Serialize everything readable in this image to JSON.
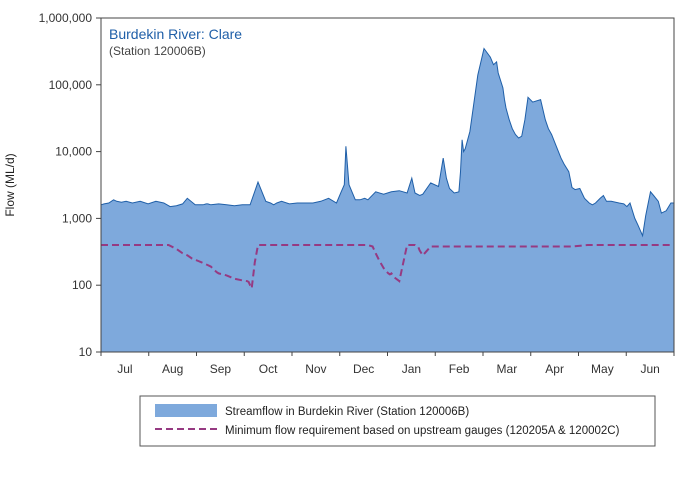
{
  "chart_data": {
    "type": "area",
    "title": "Burdekin River: Clare",
    "subtitle": "(Station 120006B)",
    "xlabel": "",
    "ylabel": "Flow (ML/d)",
    "yscale": "log",
    "ylim": [
      10,
      1000000
    ],
    "y_ticks": [
      10,
      100,
      1000,
      10000,
      100000,
      1000000
    ],
    "y_tick_labels": [
      "10",
      "100",
      "1,000",
      "10,000",
      "100,000",
      "1,000,000"
    ],
    "x_tick_labels": [
      "Jul",
      "Aug",
      "Sep",
      "Oct",
      "Nov",
      "Dec",
      "Jan",
      "Feb",
      "Mar",
      "Apr",
      "May",
      "Jun"
    ],
    "x_range_days": [
      0,
      365
    ],
    "grid": false,
    "legend_position": "bottom",
    "series": [
      {
        "name": "Streamflow in Burdekin River (Station 120006B)",
        "style": "area",
        "color": "#7ea9dc",
        "edge_color": "#1f5fa8",
        "x": [
          0,
          2,
          5,
          8,
          10,
          13,
          16,
          20,
          25,
          30,
          35,
          40,
          44,
          48,
          52,
          55,
          60,
          65,
          67,
          68,
          70,
          75,
          80,
          85,
          90,
          95,
          100,
          105,
          108,
          110,
          112,
          115,
          120,
          125,
          130,
          135,
          140,
          145,
          150,
          153,
          155,
          156,
          158,
          162,
          165,
          168,
          170,
          175,
          180,
          185,
          190,
          195,
          198,
          200,
          203,
          205,
          210,
          215,
          218,
          220,
          222,
          225,
          228,
          229,
          230,
          231,
          232,
          235,
          240,
          244,
          248,
          250,
          252,
          253,
          256,
          257,
          258,
          260,
          262,
          264,
          266,
          268,
          270,
          272,
          275,
          280,
          283,
          285,
          287,
          290,
          293,
          295,
          298,
          300,
          302,
          305,
          308,
          311,
          313,
          315,
          318,
          320,
          322,
          325,
          330,
          333,
          335,
          337,
          340,
          342,
          345,
          347,
          350,
          352,
          355,
          357,
          360,
          363,
          365
        ],
        "y": [
          1600,
          1650,
          1700,
          1900,
          1800,
          1750,
          1800,
          1700,
          1800,
          1650,
          1800,
          1700,
          1500,
          1550,
          1650,
          2000,
          1600,
          1600,
          1650,
          1650,
          1600,
          1650,
          1600,
          1550,
          1600,
          1600,
          3500,
          1800,
          1700,
          1600,
          1700,
          1800,
          1650,
          1700,
          1700,
          1700,
          1800,
          2000,
          1700,
          2500,
          3200,
          12000,
          3200,
          1900,
          1900,
          2000,
          1900,
          2500,
          2300,
          2500,
          2600,
          2400,
          4000,
          2400,
          2200,
          2300,
          3400,
          3000,
          8000,
          4000,
          2800,
          2400,
          2500,
          5000,
          15000,
          10000,
          11000,
          20000,
          140000,
          350000,
          260000,
          200000,
          220000,
          150000,
          90000,
          60000,
          45000,
          30000,
          22000,
          18000,
          16000,
          17000,
          30000,
          65000,
          55000,
          60000,
          30000,
          22000,
          18000,
          12000,
          8000,
          6500,
          5000,
          2900,
          2700,
          2800,
          2000,
          1700,
          1600,
          1700,
          2000,
          2200,
          1800,
          1800,
          1700,
          1650,
          1500,
          1700,
          1000,
          800,
          550,
          1100,
          2500,
          2200,
          1800,
          1200,
          1300,
          1700,
          1700
        ]
      },
      {
        "name": "Minimum flow requirement based on upstream gauges (120205A & 120002C)",
        "style": "dashed-line",
        "color": "#963a82",
        "x": [
          0,
          10,
          20,
          30,
          35,
          40,
          43,
          48,
          52,
          55,
          58,
          60,
          62,
          64,
          66,
          68,
          70,
          72,
          74,
          75,
          80,
          85,
          90,
          93,
          94,
          95,
          96,
          98,
          100,
          110,
          120,
          130,
          140,
          150,
          160,
          165,
          170,
          173,
          175,
          177,
          180,
          182,
          183,
          184,
          185,
          187,
          190,
          195,
          198,
          200,
          202,
          203,
          205,
          210,
          220,
          230,
          240,
          250,
          260,
          270,
          280,
          290,
          295,
          300,
          310,
          320,
          330,
          340,
          350,
          360,
          365
        ],
        "y": [
          400,
          400,
          400,
          400,
          400,
          400,
          400,
          350,
          300,
          280,
          250,
          240,
          230,
          220,
          210,
          200,
          190,
          170,
          155,
          150,
          140,
          125,
          118,
          115,
          112,
          100,
          90,
          220,
          400,
          400,
          400,
          400,
          400,
          400,
          400,
          400,
          400,
          380,
          300,
          240,
          180,
          160,
          150,
          145,
          150,
          130,
          115,
          400,
          400,
          400,
          380,
          330,
          280,
          380,
          380,
          380,
          380,
          380,
          380,
          380,
          380,
          380,
          380,
          380,
          400,
          400,
          400,
          400,
          400,
          400,
          400
        ]
      }
    ]
  }
}
